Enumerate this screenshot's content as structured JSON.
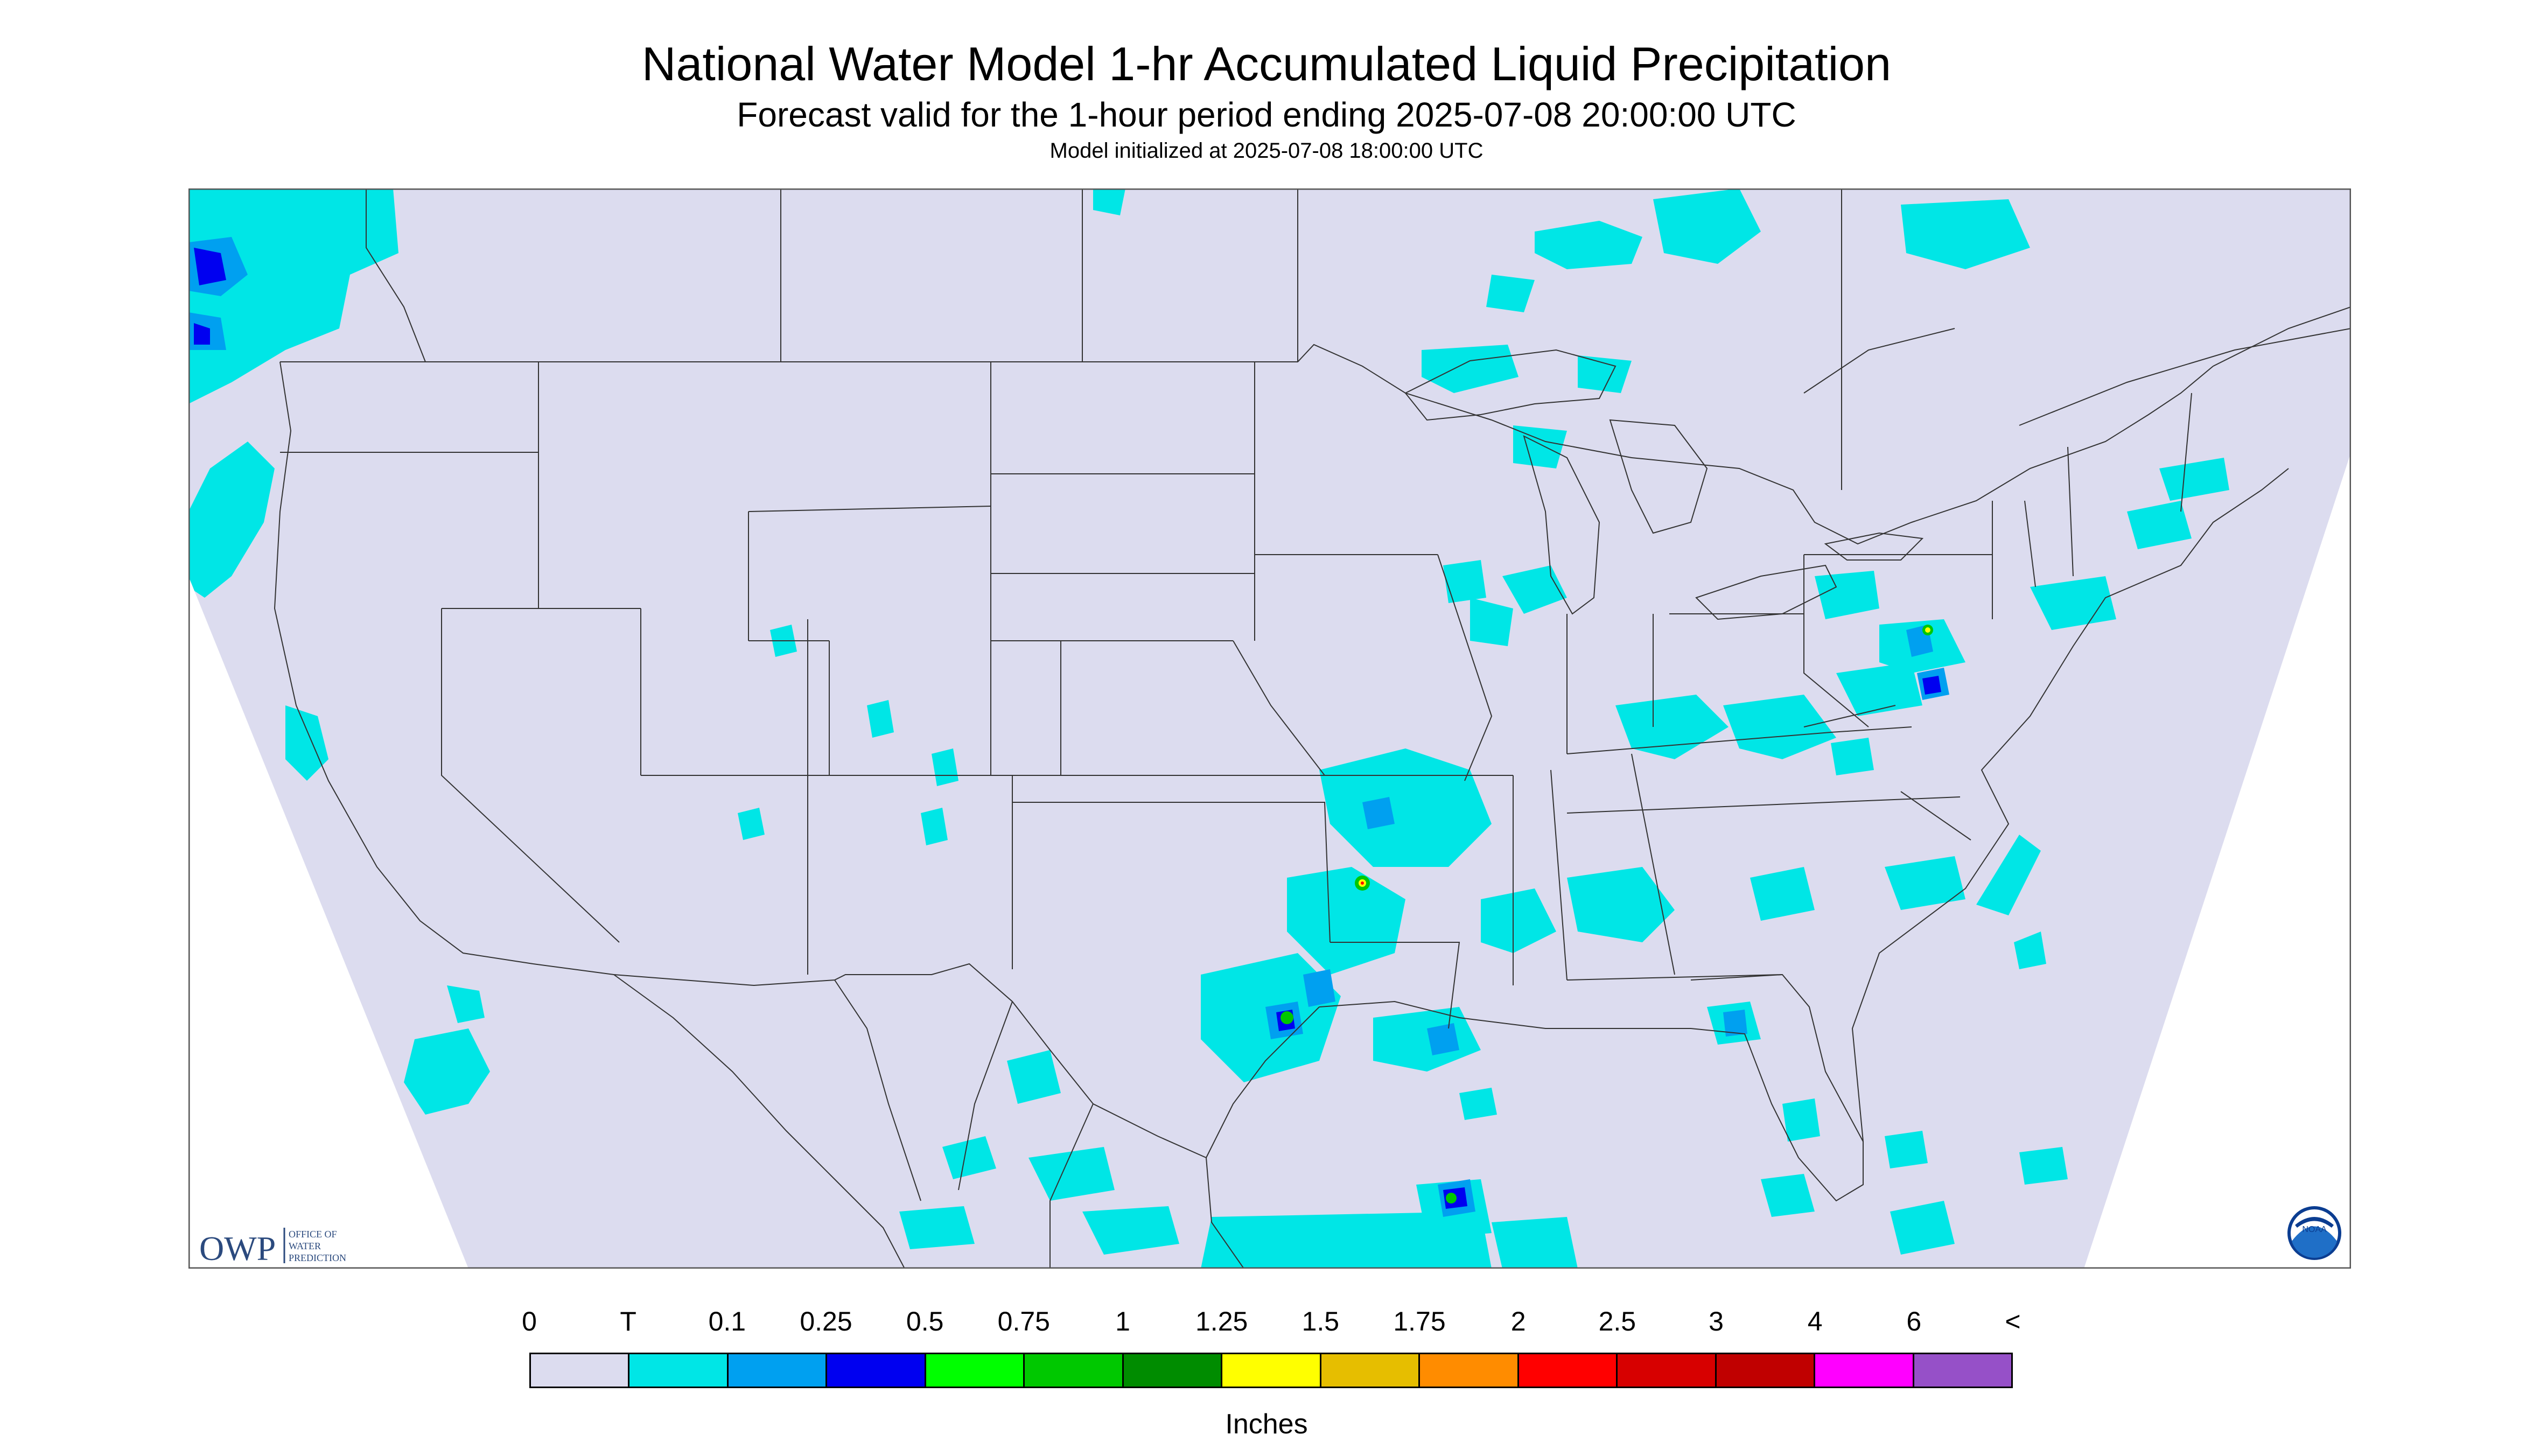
{
  "header": {
    "title": "National Water Model 1-hr Accumulated Liquid Precipitation",
    "subtitle": "Forecast valid for the 1-hour period ending 2025-07-08 20:00:00 UTC",
    "init_line": "Model initialized at 2025-07-08 18:00:00 UTC"
  },
  "logos": {
    "owp_mark": "OWP",
    "owp_lines": [
      "OFFICE OF",
      "WATER",
      "PREDICTION"
    ],
    "noaa_mark": "NOAA"
  },
  "legend": {
    "labels": [
      "0",
      "T",
      "0.1",
      "0.25",
      "0.5",
      "0.75",
      "1",
      "1.25",
      "1.5",
      "1.75",
      "2",
      "2.5",
      "3",
      "4",
      "6",
      "<"
    ],
    "colors": [
      "#dcdcef",
      "#00e6e6",
      "#00a0f0",
      "#0000f0",
      "#00ff00",
      "#00c800",
      "#008c00",
      "#ffff00",
      "#e6be00",
      "#ff8c00",
      "#ff0000",
      "#d70000",
      "#c00000",
      "#ff00ff",
      "#9650c8"
    ],
    "units": "Inches"
  },
  "map_colors": {
    "background": "#dcdcef",
    "outside": "#ffffff",
    "trace": "#00e6e6",
    "light": "#00a0f0",
    "moderate": "#0000f0",
    "heavy": "#00c800",
    "very_heavy": "#ffff00",
    "extreme": "#ff0000"
  }
}
